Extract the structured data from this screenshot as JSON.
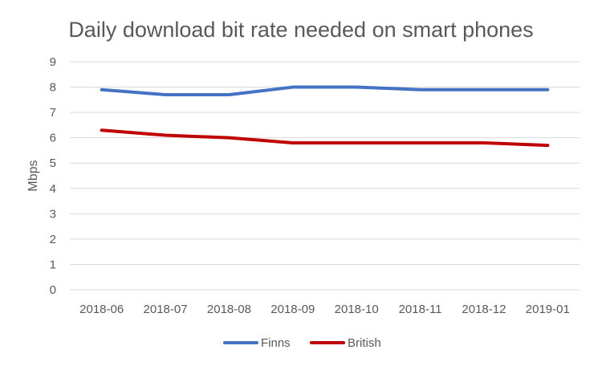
{
  "chart_data": {
    "type": "line",
    "title": "Daily download bit rate needed on smart phones",
    "xlabel": "",
    "ylabel": "Mbps",
    "categories": [
      "2018-06",
      "2018-07",
      "2018-08",
      "2018-09",
      "2018-10",
      "2018-11",
      "2018-12",
      "2019-01"
    ],
    "ylim": [
      0,
      9
    ],
    "yticks": [
      0,
      1,
      2,
      3,
      4,
      5,
      6,
      7,
      8,
      9
    ],
    "grid": true,
    "legend_position": "bottom",
    "series": [
      {
        "name": "Finns",
        "color": "#4472c4",
        "values": [
          7.9,
          7.7,
          7.7,
          8.0,
          8.0,
          7.9,
          7.9,
          7.9
        ]
      },
      {
        "name": "British",
        "color": "#c00000",
        "values": [
          6.3,
          6.1,
          6.0,
          5.8,
          5.8,
          5.8,
          5.8,
          5.7
        ]
      }
    ]
  }
}
